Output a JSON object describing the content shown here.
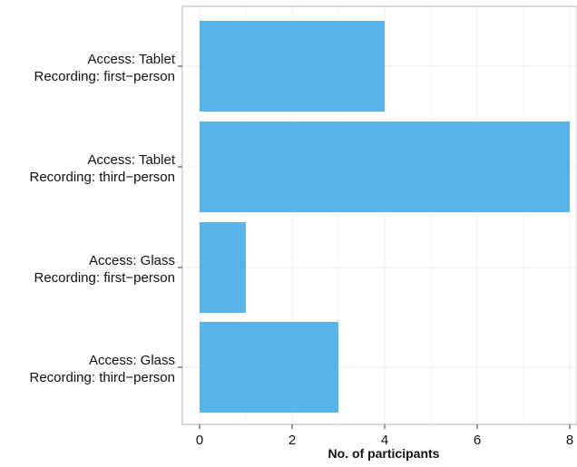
{
  "chart_data": {
    "type": "bar",
    "orientation": "horizontal",
    "title": "",
    "xlabel": "No. of participants",
    "ylabel": "",
    "xlim": [
      0,
      8
    ],
    "xticks": [
      0,
      2,
      4,
      6,
      8
    ],
    "grid": true,
    "legend": "none",
    "bar_color": "#56B4E9",
    "categories": [
      {
        "line1": "Access: Tablet",
        "line2": "Recording: first−person",
        "value": 4
      },
      {
        "line1": "Access: Tablet",
        "line2": "Recording: third−person",
        "value": 8
      },
      {
        "line1": "Access: Glass",
        "line2": "Recording: first−person",
        "value": 1
      },
      {
        "line1": "Access: Glass",
        "line2": "Recording: third−person",
        "value": 3
      }
    ]
  }
}
